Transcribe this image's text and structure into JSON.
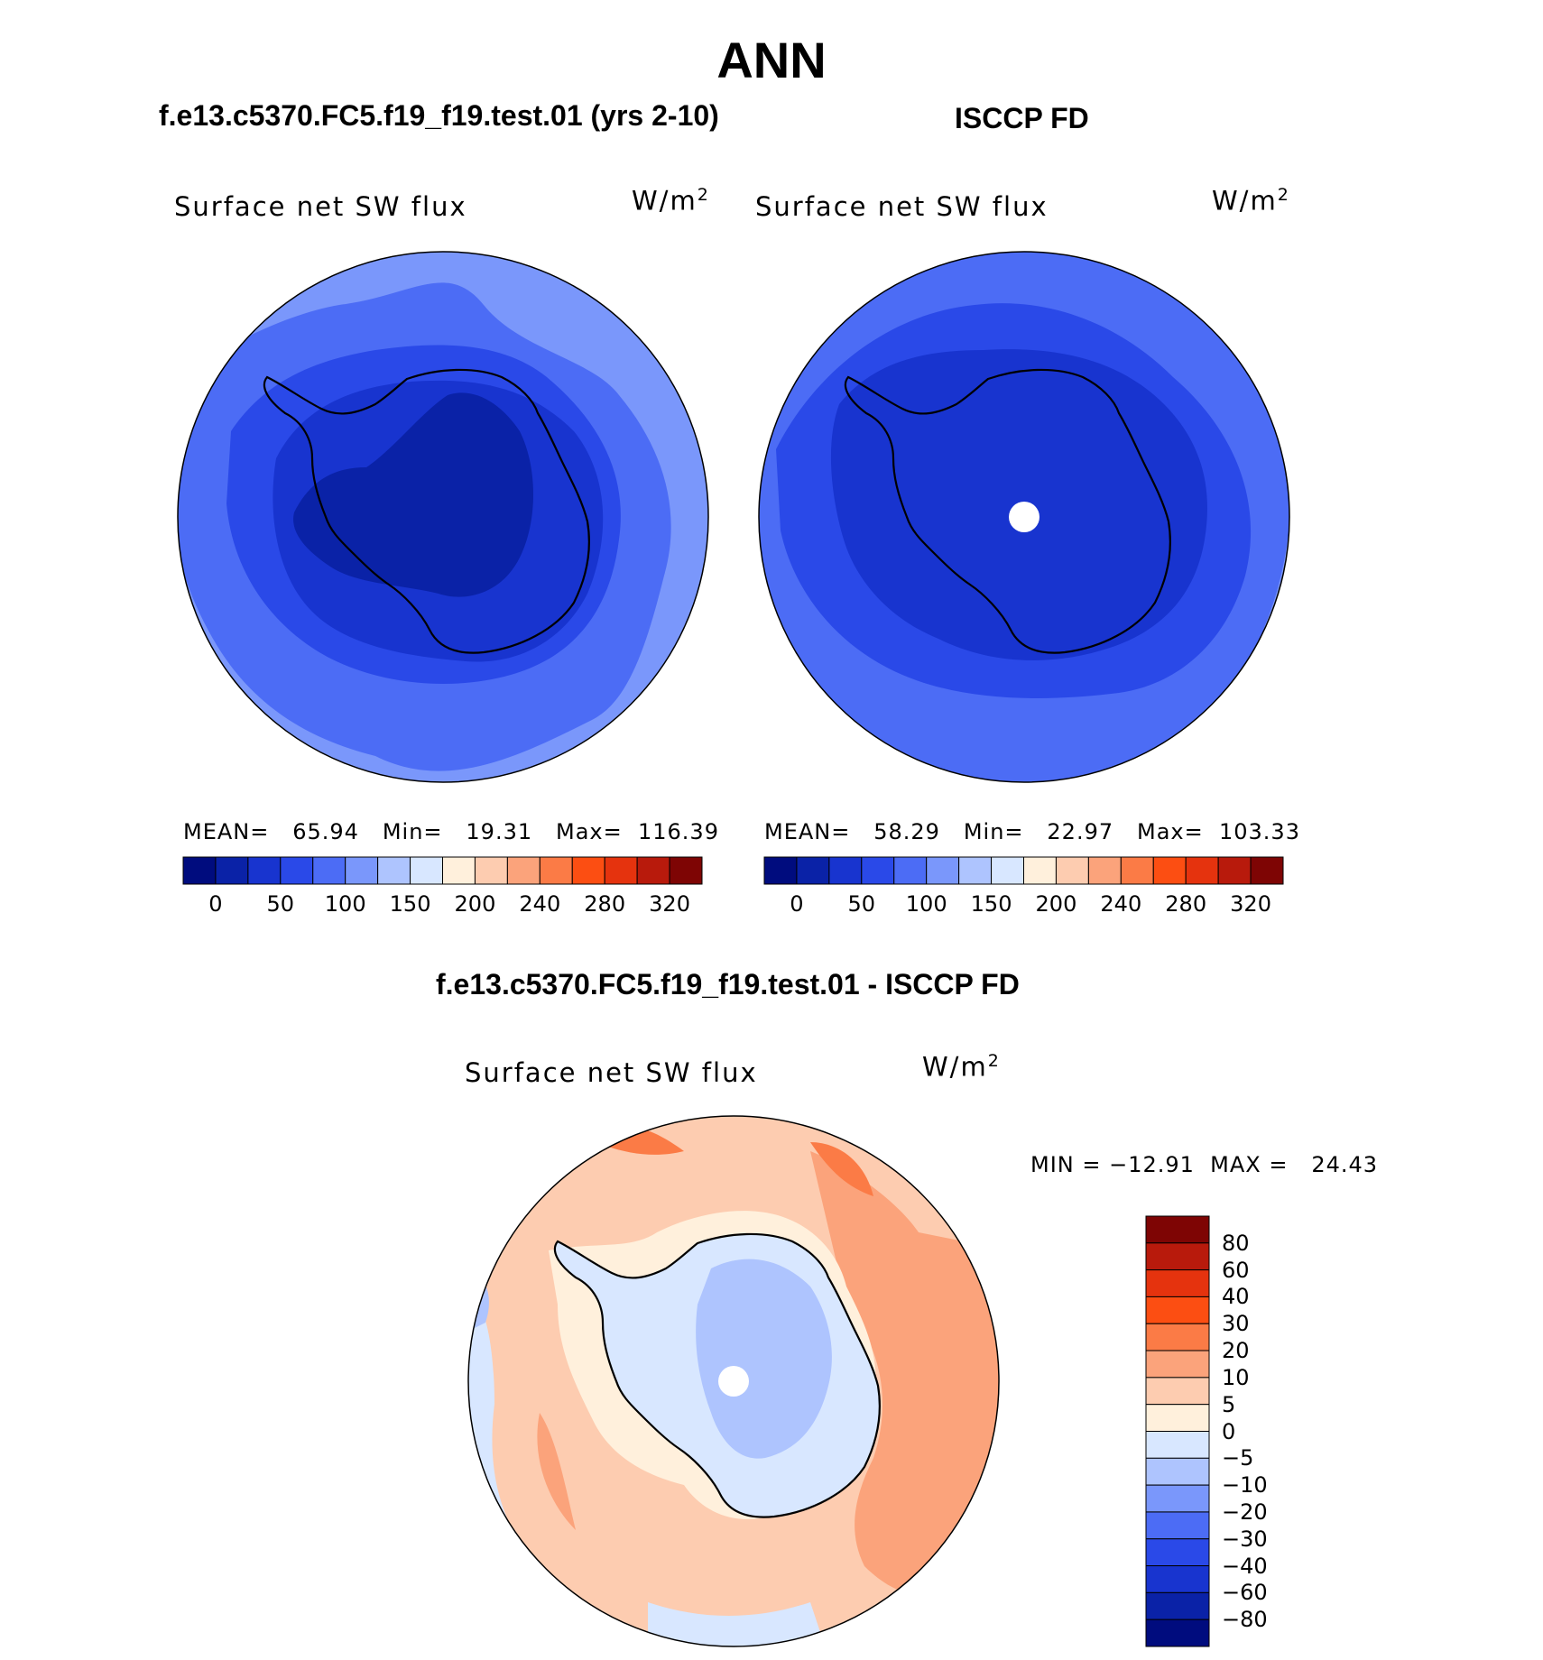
{
  "figure": {
    "title": "ANN",
    "colors": {
      "seq_levels": [
        "#000c7e",
        "#0a22a7",
        "#1834cf",
        "#2a49e8",
        "#4c6cf5",
        "#7a97fb",
        "#aec4fe",
        "#d8e7ff",
        "#fff0dc",
        "#fdccb0",
        "#fba37b",
        "#fb7b46",
        "#fc4e12",
        "#e5330e",
        "#b81a0c",
        "#7e0504"
      ],
      "diff_levels": [
        "#000c7e",
        "#0a22a7",
        "#1834cf",
        "#2a49e8",
        "#4c6cf5",
        "#7a97fb",
        "#aec4fe",
        "#d8e7ff",
        "#fff0dc",
        "#fdccb0",
        "#fba37b",
        "#fb7b46",
        "#fc4e12",
        "#e5330e",
        "#b81a0c",
        "#7e0504"
      ]
    }
  },
  "panels": {
    "test": {
      "case_title": "f.e13.c5370.FC5.f19_f19.test.01 (yrs 2-10)",
      "field_label": "Surface net SW flux",
      "unit": "W/m",
      "unit_exp": "2",
      "stats": "MEAN=   65.94   Min=   19.31   Max=  116.39",
      "colorbar_ticks": [
        "0",
        "50",
        "100",
        "150",
        "200",
        "240",
        "280",
        "320"
      ]
    },
    "obs": {
      "case_title": "ISCCP FD",
      "field_label": "Surface net SW flux",
      "unit": "W/m",
      "unit_exp": "2",
      "stats": "MEAN=   58.29   Min=   22.97   Max=  103.33",
      "colorbar_ticks": [
        "0",
        "50",
        "100",
        "150",
        "200",
        "240",
        "280",
        "320"
      ]
    },
    "diff": {
      "case_title": "f.e13.c5370.FC5.f19_f19.test.01 - ISCCP FD",
      "field_label": "Surface net SW flux",
      "unit": "W/m",
      "unit_exp": "2",
      "stats": "MIN = −12.91  MAX =   24.43",
      "colorbar_ticks": [
        "80",
        "60",
        "40",
        "30",
        "20",
        "10",
        "5",
        "0",
        "−5",
        "−10",
        "−20",
        "−30",
        "−40",
        "−60",
        "−80"
      ]
    }
  }
}
